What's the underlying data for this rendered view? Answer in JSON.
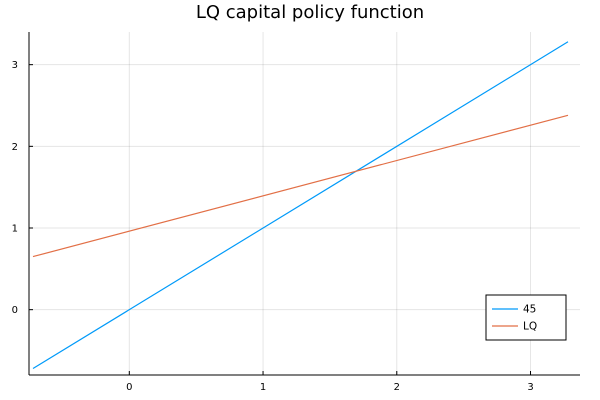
{
  "chart_data": {
    "type": "line",
    "title": "LQ capital policy function",
    "xlabel": "",
    "ylabel": "",
    "xlim": [
      -0.75,
      3.37
    ],
    "ylim": [
      -0.8,
      3.4
    ],
    "xticks": [
      0,
      1,
      2,
      3
    ],
    "yticks": [
      0,
      1,
      2,
      3
    ],
    "grid": true,
    "legend_position": "bottom-right",
    "series": [
      {
        "name": "45",
        "color": "#009af9",
        "x": [
          -0.72,
          3.28
        ],
        "y": [
          -0.72,
          3.28
        ]
      },
      {
        "name": "LQ",
        "color": "#e26f46",
        "x": [
          -0.72,
          3.28
        ],
        "y": [
          0.65,
          2.38
        ]
      }
    ]
  }
}
